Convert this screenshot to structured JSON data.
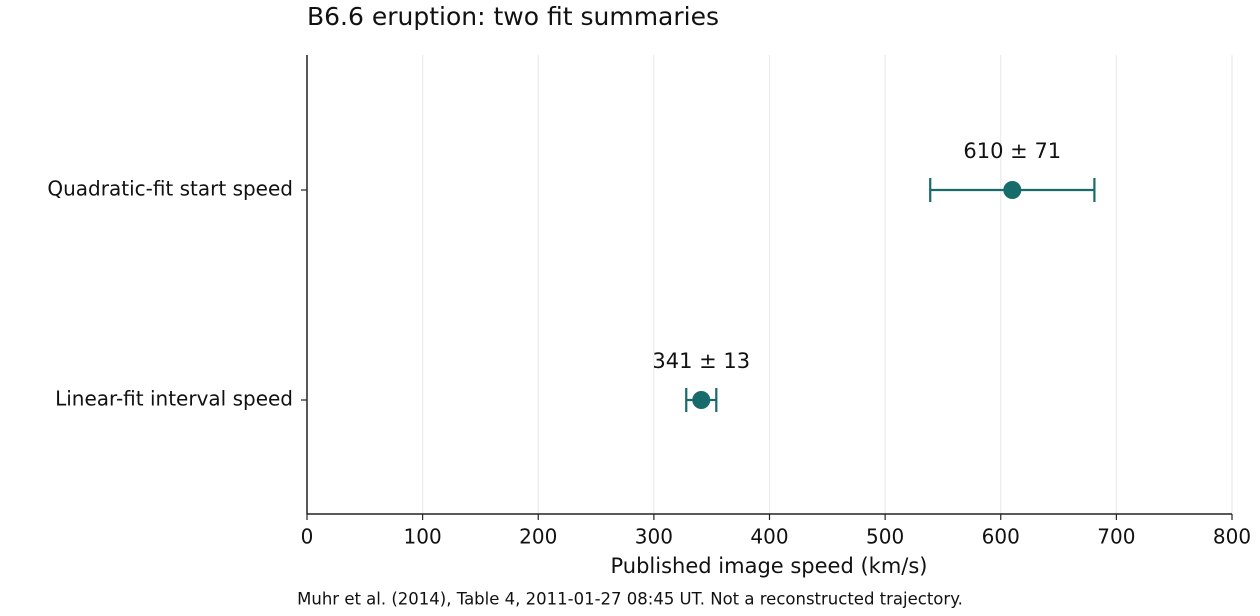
{
  "chart_data": {
    "type": "errorbar-dot",
    "title": "B6.6 eruption: two fit summaries",
    "categories": [
      "Quadratic-fit start speed",
      "Linear-fit interval speed"
    ],
    "values": [
      610,
      341
    ],
    "errors": [
      71,
      13
    ],
    "value_labels": [
      "610 ± 71",
      "341 ± 13"
    ],
    "color": "#176b6a",
    "xlabel": "Published image speed (km/s)",
    "xlim": [
      0,
      800
    ],
    "xticks": [
      0,
      100,
      200,
      300,
      400,
      500,
      600,
      700,
      800
    ],
    "grid": true,
    "note": "Muhr et al. (2014), Table 4, 2011-01-27 08:45 UT. Not a reconstructed trajectory."
  }
}
